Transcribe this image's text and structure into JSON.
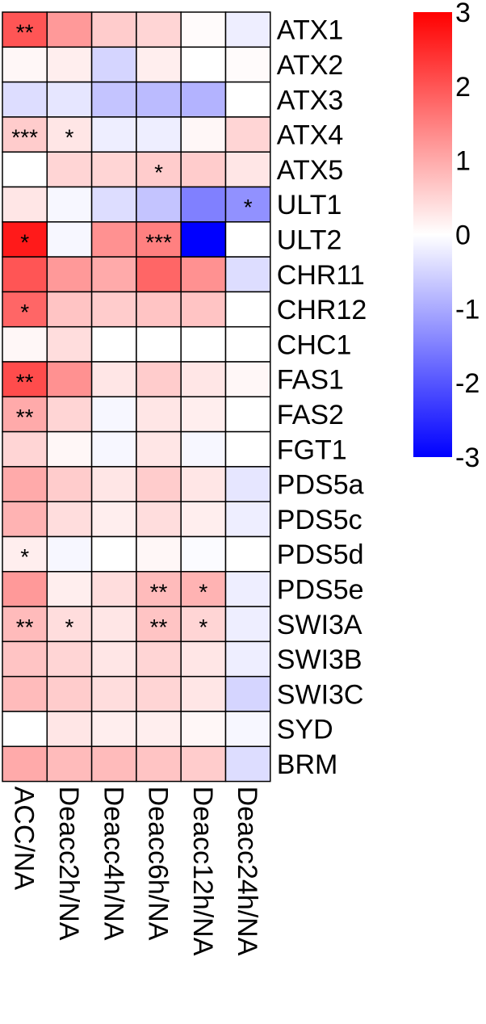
{
  "chart_data": {
    "type": "heatmap",
    "title": "",
    "columns": [
      "ACC/NA",
      "Deacc2h/NA",
      "Deacc4h/NA",
      "Deacc6h/NA",
      "Deacc12h/NA",
      "Deacc24h/NA"
    ],
    "rows": [
      "ATX1",
      "ATX2",
      "ATX3",
      "ATX4",
      "ATX5",
      "ULT1",
      "ULT2",
      "CHR11",
      "CHR12",
      "CHC1",
      "FAS1",
      "FAS2",
      "FGT1",
      "PDS5a",
      "PDS5c",
      "PDS5d",
      "PDS5e",
      "SWI3A",
      "SWI3B",
      "SWI3C",
      "SYD",
      "BRM"
    ],
    "values": [
      [
        2.0,
        1.2,
        0.6,
        0.5,
        0.05,
        -0.2
      ],
      [
        0.1,
        0.2,
        -0.5,
        0.2,
        0.0,
        0.05
      ],
      [
        -0.4,
        -0.3,
        -0.7,
        -0.8,
        -0.9,
        0.0
      ],
      [
        0.6,
        0.3,
        -0.2,
        -0.2,
        0.1,
        0.5
      ],
      [
        0.0,
        0.5,
        0.5,
        0.6,
        0.6,
        0.3
      ],
      [
        0.3,
        -0.1,
        -0.4,
        -0.7,
        -1.5,
        -1.3
      ],
      [
        2.7,
        -0.1,
        1.3,
        1.5,
        -3.0,
        0.0
      ],
      [
        2.0,
        1.2,
        1.0,
        1.8,
        1.3,
        -0.4
      ],
      [
        1.8,
        0.7,
        0.6,
        0.7,
        0.7,
        0.0
      ],
      [
        0.1,
        0.4,
        0.0,
        0.0,
        0.0,
        0.0
      ],
      [
        2.1,
        1.3,
        0.3,
        0.6,
        0.3,
        0.1
      ],
      [
        1.0,
        0.5,
        -0.1,
        0.3,
        0.2,
        0.0
      ],
      [
        0.5,
        0.1,
        -0.1,
        0.3,
        -0.1,
        0.0
      ],
      [
        1.0,
        0.6,
        0.3,
        0.6,
        0.3,
        -0.3
      ],
      [
        0.9,
        0.4,
        0.2,
        0.4,
        0.2,
        -0.2
      ],
      [
        0.2,
        -0.1,
        0.0,
        0.1,
        -0.05,
        0.0
      ],
      [
        1.2,
        0.2,
        0.4,
        0.8,
        0.9,
        -0.2
      ],
      [
        0.8,
        0.4,
        0.3,
        0.7,
        0.5,
        -0.2
      ],
      [
        0.7,
        0.5,
        0.3,
        0.5,
        0.3,
        -0.2
      ],
      [
        0.8,
        0.6,
        0.4,
        0.5,
        0.3,
        -0.5
      ],
      [
        0.0,
        0.3,
        0.2,
        0.2,
        0.1,
        -0.1
      ],
      [
        1.0,
        0.8,
        0.8,
        0.7,
        0.6,
        -0.4
      ]
    ],
    "significance": [
      [
        "**",
        "",
        "",
        "",
        "",
        ""
      ],
      [
        "",
        "",
        "",
        "",
        "",
        ""
      ],
      [
        "",
        "",
        "",
        "",
        "",
        ""
      ],
      [
        "***",
        "*",
        "",
        "",
        "",
        ""
      ],
      [
        "",
        "",
        "",
        "*",
        "",
        ""
      ],
      [
        "",
        "",
        "",
        "",
        "",
        "*"
      ],
      [
        "*",
        "",
        "",
        "***",
        "",
        ""
      ],
      [
        "",
        "",
        "",
        "",
        "",
        ""
      ],
      [
        "*",
        "",
        "",
        "",
        "",
        ""
      ],
      [
        "",
        "",
        "",
        "",
        "",
        ""
      ],
      [
        "**",
        "",
        "",
        "",
        "",
        ""
      ],
      [
        "**",
        "",
        "",
        "",
        "",
        ""
      ],
      [
        "",
        "",
        "",
        "",
        "",
        ""
      ],
      [
        "",
        "",
        "",
        "",
        "",
        ""
      ],
      [
        "",
        "",
        "",
        "",
        "",
        ""
      ],
      [
        "*",
        "",
        "",
        "",
        "",
        ""
      ],
      [
        "",
        "",
        "",
        "**",
        "*",
        ""
      ],
      [
        "**",
        "*",
        "",
        "**",
        "*",
        ""
      ],
      [
        "",
        "",
        "",
        "",
        "",
        ""
      ],
      [
        "",
        "",
        "",
        "",
        "",
        ""
      ],
      [
        "",
        "",
        "",
        "",
        "",
        ""
      ],
      [
        "",
        "",
        "",
        "",
        "",
        ""
      ]
    ],
    "color_scale": {
      "min": -3,
      "max": 3,
      "low_color": "#0000ff",
      "mid_color": "#ffffff",
      "high_color": "#ff0000",
      "ticks": [
        "3",
        "2",
        "1",
        "0",
        "-1",
        "-2",
        "-3"
      ]
    }
  }
}
